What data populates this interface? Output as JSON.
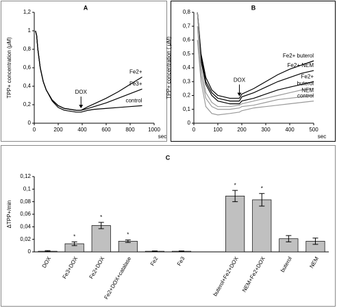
{
  "chart_data": [
    {
      "type": "line",
      "title": "A",
      "ylabel": "TPP+ concentration (μM)",
      "xlabel": "sec",
      "xlim": [
        0,
        1000
      ],
      "xticks": [
        0,
        200,
        400,
        600,
        800,
        1000
      ],
      "ylim": [
        0,
        1.2
      ],
      "yticks": [
        0,
        {
          "value": 0.2,
          "label": "0,2"
        },
        {
          "value": 0.4,
          "label": "0,4"
        },
        {
          "value": 0.6,
          "label": "0,6"
        },
        {
          "value": 0.8,
          "label": "0,8"
        },
        1,
        {
          "value": 1.2,
          "label": "1,2"
        }
      ],
      "annotation": {
        "text": "DOX",
        "x": 390
      },
      "series": [
        {
          "name": "Fe2+",
          "color": "#000000",
          "x": [
            10,
            20,
            30,
            50,
            75,
            100,
            150,
            200,
            250,
            300,
            350,
            390,
            450,
            500,
            600,
            700,
            800,
            900
          ],
          "values": [
            1.0,
            0.95,
            0.8,
            0.6,
            0.45,
            0.36,
            0.25,
            0.19,
            0.16,
            0.15,
            0.14,
            0.14,
            0.18,
            0.21,
            0.27,
            0.34,
            0.42,
            0.5
          ]
        },
        {
          "name": "Fe3+",
          "color": "#000000",
          "x": [
            10,
            20,
            30,
            50,
            75,
            100,
            150,
            200,
            250,
            300,
            350,
            390,
            450,
            500,
            600,
            700,
            800,
            900
          ],
          "values": [
            1.0,
            0.95,
            0.8,
            0.6,
            0.45,
            0.36,
            0.25,
            0.19,
            0.16,
            0.15,
            0.14,
            0.14,
            0.16,
            0.18,
            0.22,
            0.27,
            0.32,
            0.37
          ]
        },
        {
          "name": "control",
          "color": "#000000",
          "x": [
            10,
            20,
            30,
            50,
            75,
            100,
            150,
            200,
            250,
            300,
            350,
            390,
            450,
            500,
            600,
            700,
            800,
            900
          ],
          "values": [
            1.0,
            0.95,
            0.8,
            0.6,
            0.45,
            0.36,
            0.24,
            0.17,
            0.14,
            0.13,
            0.12,
            0.12,
            0.14,
            0.15,
            0.16,
            0.17,
            0.18,
            0.19
          ]
        }
      ]
    },
    {
      "type": "line",
      "title": "B",
      "ylabel": "TPP+ concentration ( μM)",
      "xlabel": "sec",
      "xlim": [
        0,
        500
      ],
      "xticks": [
        0,
        100,
        200,
        300,
        400,
        500
      ],
      "ylim": [
        0,
        0.8
      ],
      "yticks": [
        0,
        {
          "value": 0.1,
          "label": "0,1"
        },
        {
          "value": 0.2,
          "label": "0,2"
        },
        {
          "value": 0.3,
          "label": "0,3"
        },
        {
          "value": 0.4,
          "label": "0,4"
        },
        {
          "value": 0.5,
          "label": "0,5"
        },
        {
          "value": 0.6,
          "label": "0,6"
        },
        {
          "value": 0.7,
          "label": "0,7"
        },
        {
          "value": 0.8,
          "label": "0,8"
        }
      ],
      "annotation": {
        "text": "DOX",
        "x": 190
      },
      "series": [
        {
          "name": "Fe2+ buterol",
          "color": "#000000",
          "x": [
            15,
            30,
            50,
            75,
            100,
            150,
            190,
            200,
            250,
            300,
            350,
            400,
            450,
            500
          ],
          "values": [
            0.8,
            0.5,
            0.33,
            0.24,
            0.2,
            0.18,
            0.18,
            0.21,
            0.25,
            0.3,
            0.35,
            0.39,
            0.42,
            0.45
          ]
        },
        {
          "name": "Fe2+ NEM",
          "color": "#000000",
          "x": [
            15,
            30,
            50,
            75,
            100,
            150,
            190,
            200,
            250,
            300,
            350,
            400,
            450,
            500
          ],
          "values": [
            0.8,
            0.48,
            0.3,
            0.22,
            0.18,
            0.16,
            0.16,
            0.19,
            0.22,
            0.26,
            0.3,
            0.33,
            0.36,
            0.38
          ]
        },
        {
          "name": "Fe2+",
          "color": "#000000",
          "x": [
            15,
            30,
            50,
            75,
            100,
            150,
            190,
            200,
            250,
            300,
            350,
            400,
            450,
            500
          ],
          "values": [
            0.8,
            0.45,
            0.28,
            0.2,
            0.16,
            0.14,
            0.14,
            0.16,
            0.18,
            0.21,
            0.24,
            0.26,
            0.28,
            0.3
          ]
        },
        {
          "name": "buterol",
          "color": "#999999",
          "x": [
            15,
            30,
            50,
            75,
            100,
            150,
            190,
            200,
            250,
            300,
            350,
            400,
            450,
            500
          ],
          "values": [
            0.8,
            0.4,
            0.22,
            0.15,
            0.12,
            0.12,
            0.13,
            0.14,
            0.16,
            0.18,
            0.2,
            0.22,
            0.24,
            0.25
          ]
        },
        {
          "name": "NEM",
          "color": "#999999",
          "x": [
            15,
            30,
            50,
            75,
            100,
            150,
            190,
            200,
            250,
            300,
            350,
            400,
            450,
            500
          ],
          "values": [
            0.7,
            0.35,
            0.18,
            0.12,
            0.1,
            0.1,
            0.11,
            0.12,
            0.13,
            0.15,
            0.17,
            0.18,
            0.19,
            0.2
          ]
        },
        {
          "name": "control",
          "color": "#999999",
          "x": [
            15,
            30,
            50,
            75,
            100,
            150,
            190,
            200,
            250,
            300,
            350,
            400,
            450,
            500
          ],
          "values": [
            0.6,
            0.3,
            0.12,
            0.07,
            0.06,
            0.07,
            0.08,
            0.09,
            0.11,
            0.12,
            0.13,
            0.14,
            0.15,
            0.16
          ]
        }
      ]
    },
    {
      "type": "bar",
      "title": "C",
      "ylabel": "ΔTPP+/min",
      "color": "#c0c0c0",
      "categories": [
        "DOX",
        "Fe3+DOX",
        "Fe2+DOX",
        "Fe2+DOX+catalase",
        "Fe2",
        "Fe3",
        null,
        "buterol+Fe2+DOX",
        "NEM+Fe2+DOX",
        "buterol",
        "NEM"
      ],
      "values": [
        0.001,
        0.013,
        0.042,
        0.017,
        0.001,
        0.001,
        null,
        0.089,
        0.083,
        0.021,
        0.017
      ],
      "errors": [
        0.001,
        0.003,
        0.005,
        0.002,
        0.0005,
        0.0005,
        null,
        0.009,
        0.01,
        0.005,
        0.005
      ],
      "significance_marker": "*",
      "significant": [
        false,
        true,
        true,
        true,
        false,
        false,
        false,
        true,
        true,
        false,
        false
      ],
      "ylim": [
        0,
        0.12
      ],
      "yticks": [
        0,
        {
          "value": 0.02,
          "label": "0,02"
        },
        {
          "value": 0.04,
          "label": "0,04"
        },
        {
          "value": 0.06,
          "label": "0,06"
        },
        {
          "value": 0.08,
          "label": "0,08"
        },
        {
          "value": 0.1,
          "label": "0,1"
        },
        {
          "value": 0.12,
          "label": "0,12"
        }
      ]
    }
  ]
}
